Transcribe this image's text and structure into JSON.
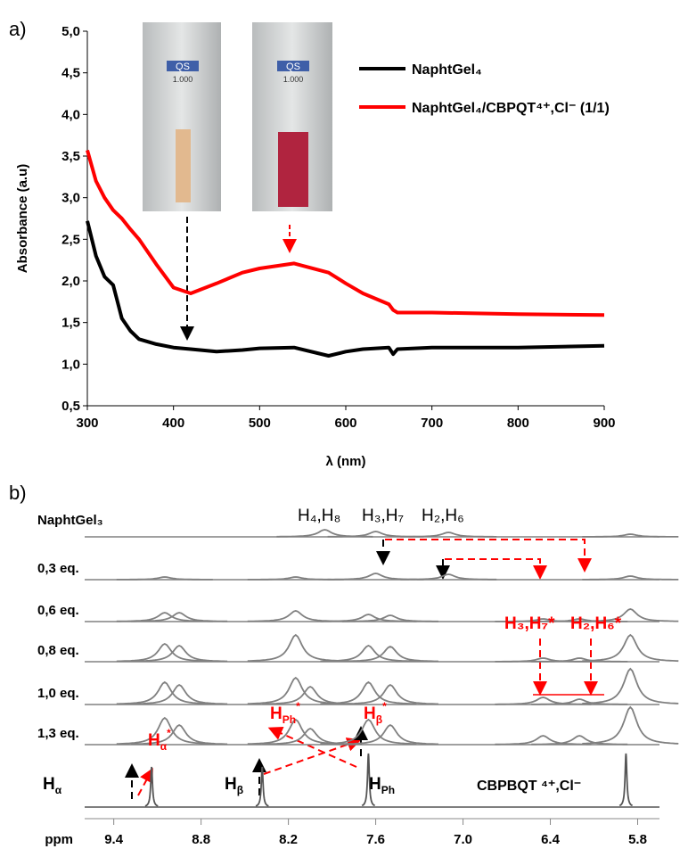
{
  "chart_data": [
    {
      "type": "line",
      "panel_label": "a)",
      "x_label": "λ (nm)",
      "y_label": "Absorbance (a.u)",
      "x": [
        300,
        310,
        320,
        330,
        340,
        350,
        360,
        380,
        400,
        420,
        450,
        480,
        500,
        540,
        580,
        600,
        620,
        650,
        655,
        660,
        700,
        800,
        900
      ],
      "series": [
        {
          "name": "NaphtGel₄",
          "color": "#000000",
          "values": [
            2.72,
            2.3,
            2.05,
            1.95,
            1.55,
            1.4,
            1.3,
            1.24,
            1.2,
            1.18,
            1.15,
            1.17,
            1.19,
            1.2,
            1.1,
            1.15,
            1.18,
            1.2,
            1.12,
            1.18,
            1.2,
            1.2,
            1.22
          ]
        },
        {
          "name": "NaphtGel₄/CBPQT⁴⁺,Cl⁻ (1/1)",
          "color": "#ff0000",
          "values": [
            3.57,
            3.2,
            3.0,
            2.85,
            2.75,
            2.62,
            2.5,
            2.2,
            1.92,
            1.85,
            1.97,
            2.1,
            2.15,
            2.21,
            2.1,
            1.97,
            1.85,
            1.72,
            1.65,
            1.62,
            1.62,
            1.6,
            1.59
          ]
        }
      ],
      "xlim": [
        300,
        900
      ],
      "xticks": [
        300,
        400,
        500,
        600,
        700,
        800,
        900
      ],
      "ylim": [
        0.5,
        5.0
      ],
      "yticks": [
        {
          "value": 0.5,
          "label": "0,5"
        },
        {
          "value": 1.0,
          "label": "1,0"
        },
        {
          "value": 1.5,
          "label": "1,5"
        },
        {
          "value": 2.0,
          "label": "2,0"
        },
        {
          "value": 2.5,
          "label": "2,5"
        },
        {
          "value": 3.0,
          "label": "3,0"
        },
        {
          "value": 3.5,
          "label": "3,5"
        },
        {
          "value": 4.0,
          "label": "4,0"
        },
        {
          "value": 4.5,
          "label": "4,5"
        },
        {
          "value": 5.0,
          "label": "5,0"
        }
      ],
      "cuvette_label": "QS",
      "cuvette_number": "1.000"
    },
    {
      "type": "spectrum",
      "panel_label": "b)",
      "x_label": "ppm",
      "xlim": [
        9.6,
        5.65
      ],
      "xticks": [
        9.4,
        8.8,
        8.2,
        7.6,
        {
          "value": 7,
          "label": "7.0"
        },
        6.4,
        5.8
      ],
      "series": [
        {
          "name": "NaphtGel₃",
          "color": "#808080",
          "x": [
            7.95,
            7.6,
            7.1,
            5.85
          ],
          "values": [
            8,
            6,
            5,
            3
          ]
        },
        {
          "name": "0,3 eq.",
          "color": "#808080",
          "x": [
            9.05,
            8.15,
            7.6,
            7.1,
            5.85
          ],
          "values": [
            3,
            3,
            7,
            6,
            4
          ]
        },
        {
          "name": "0,6 eq.",
          "color": "#808080",
          "x": [
            9.05,
            8.95,
            8.15,
            7.65,
            7.5,
            6.45,
            6.2,
            5.85
          ],
          "values": [
            10,
            10,
            12,
            8,
            7,
            3,
            3,
            14
          ]
        },
        {
          "name": "0,8 eq.",
          "color": "#808080",
          "x": [
            9.05,
            8.95,
            8.15,
            7.65,
            7.5,
            6.45,
            6.2,
            5.85
          ],
          "values": [
            20,
            18,
            30,
            18,
            17,
            4,
            4,
            30
          ]
        },
        {
          "name": "1,0 eq.",
          "color": "#808080",
          "x": [
            9.05,
            8.95,
            8.15,
            8.05,
            7.65,
            7.5,
            6.45,
            6.2,
            5.85
          ],
          "values": [
            25,
            22,
            30,
            20,
            25,
            22,
            8,
            6,
            40
          ]
        },
        {
          "name": "1,3 eq.",
          "color": "#808080",
          "x": [
            9.05,
            8.95,
            8.15,
            8.05,
            7.65,
            7.5,
            6.45,
            6.2,
            5.85
          ],
          "values": [
            30,
            22,
            28,
            18,
            28,
            22,
            10,
            10,
            42
          ]
        },
        {
          "name": "CBPBQT ⁴⁺,Cl⁻",
          "color": "#555555",
          "x": [
            9.14,
            8.38,
            7.65,
            5.88
          ],
          "values": [
            45,
            45,
            60,
            60
          ]
        }
      ],
      "annotations": [
        {
          "text": "H₄,H₈",
          "color": "#000000"
        },
        {
          "text": "H₃,H₇",
          "color": "#000000"
        },
        {
          "text": "H₂,H₆",
          "color": "#000000"
        },
        {
          "text": "H₃,H₇*",
          "color": "#ff0000"
        },
        {
          "text": "H₂,H₆*",
          "color": "#ff0000"
        },
        {
          "text": "H",
          "sub": "α",
          "color": "#000000"
        },
        {
          "text": "H",
          "sub": "α",
          "sup": "*",
          "color": "#ff0000"
        },
        {
          "text": "H",
          "sub": "β",
          "color": "#000000"
        },
        {
          "text": "H",
          "sub": "Ph",
          "sup": "*",
          "color": "#ff0000"
        },
        {
          "text": "H",
          "sub": "β",
          "sup": "*",
          "color": "#ff0000"
        },
        {
          "text": "H",
          "sub": "Ph",
          "color": "#000000"
        }
      ]
    }
  ]
}
